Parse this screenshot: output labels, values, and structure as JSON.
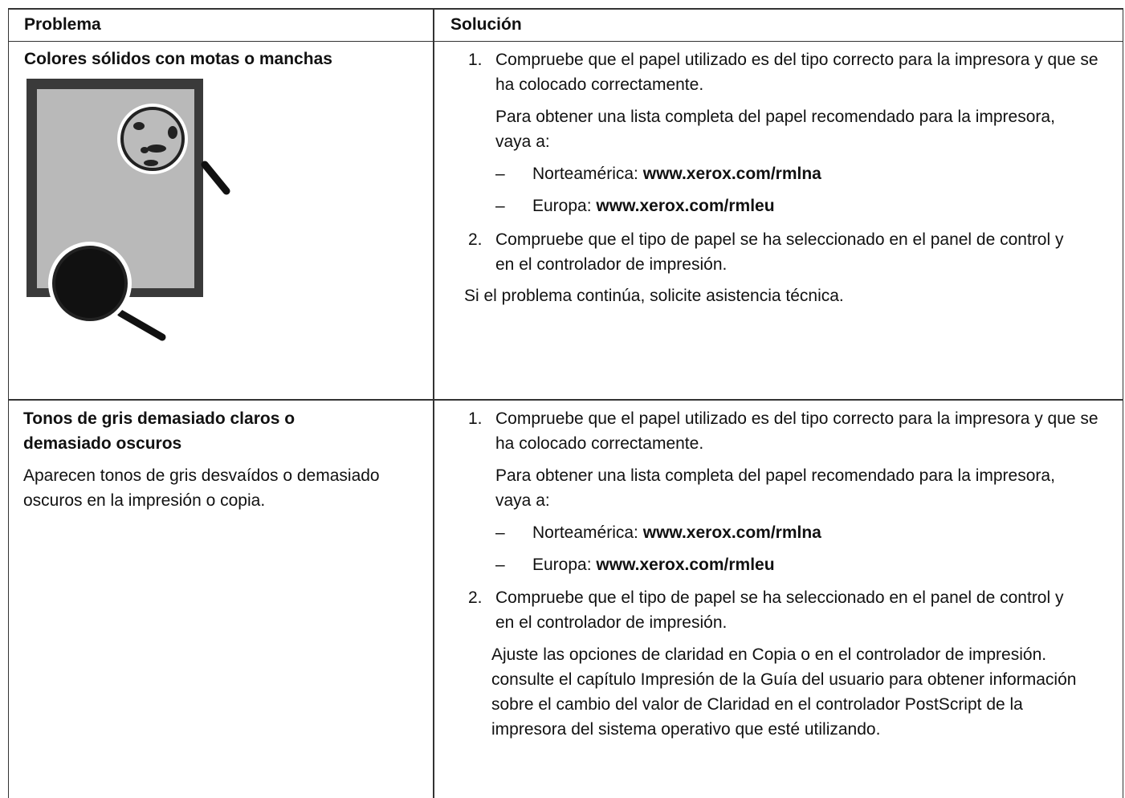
{
  "header": {
    "problem": "Problema",
    "solution": "Solución"
  },
  "rows": [
    {
      "problem": {
        "title": "Colores sólidos con motas o manchas"
      },
      "solution": {
        "step1": {
          "number": "1.",
          "text": "Compruebe que el papel utilizado es del tipo correcto para la impresora y que se ha colocado correctamente."
        },
        "note": "Para obtener una lista completa del papel recomendado para la impresora, vaya a:",
        "links": [
          {
            "marker": "–",
            "label": "Norteamérica:",
            "url": "www.xerox.com/rmlna"
          },
          {
            "marker": "–",
            "label": "Europa:",
            "url": "www.xerox.com/rmleu"
          }
        ],
        "step2": {
          "number": "2.",
          "text": "Compruebe que el tipo de papel se ha seleccionado en el panel de control y en el controlador de impresión."
        },
        "closing": "Si el problema continúa, solicite asistencia técnica."
      }
    },
    {
      "problem": {
        "title": "Tonos de gris demasiado claros o demasiado oscuros",
        "description": "Aparecen tonos de gris desvaídos o demasiado oscuros en la impresión o copia."
      },
      "solution": {
        "step1": {
          "number": "1.",
          "text": "Compruebe que el papel utilizado es del tipo correcto para la impresora y que se ha colocado correctamente."
        },
        "note": "Para obtener una lista completa del papel recomendado para la impresora, vaya a:",
        "links": [
          {
            "marker": "–",
            "label": "Norteamérica:",
            "url": "www.xerox.com/rmlna"
          },
          {
            "marker": "–",
            "label": "Europa:",
            "url": "www.xerox.com/rmleu"
          }
        ],
        "step2": {
          "number": "2.",
          "text": "Compruebe que el tipo de papel se ha seleccionado en el panel de control y en el controlador de impresión."
        },
        "closing": "Ajuste las opciones de claridad en Copia o en el controlador de impresión. consulte el capítulo Impresión de la Guía del usuario para obtener información sobre el cambio del valor de Claridad en el controlador PostScript de la impresora del sistema operativo que esté utilizando."
      }
    }
  ]
}
